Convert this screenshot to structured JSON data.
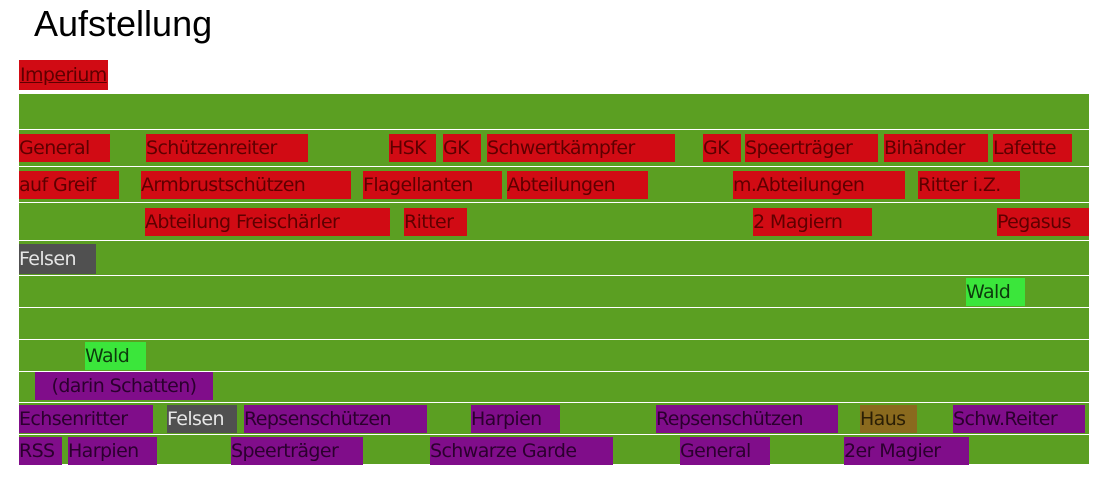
{
  "title": "Aufstellung",
  "colors": {
    "field": "#5b9f22",
    "grid": "#ffffff",
    "red_unit": "#d10b14",
    "red_text": "#5e0000",
    "purple_unit": "#800d8a",
    "purple_text": "#2b002e",
    "terrain_wald": "#3be63b",
    "terrain_felsen": "#505050",
    "terrain_haus": "#8a6a1e"
  },
  "faction_top": "Imperium",
  "rows": {
    "row1": [
      "General",
      "Schützenreiter",
      "HSK",
      "GK",
      "Schwertkämpfer",
      "GK",
      "Speerträger",
      "Bihänder",
      "Lafette"
    ],
    "row2": [
      "auf Greif",
      "Armbrustschützen",
      "Flagellanten",
      "Abteilungen",
      "m.Abteilungen",
      "Ritter i.Z."
    ],
    "row3": [
      "Abteilung Freischärler",
      "Ritter",
      "2 Magiern",
      "Pegasus"
    ],
    "row4": [
      "Felsen"
    ],
    "row5": [
      "Wald"
    ],
    "row7": [
      "Wald"
    ],
    "row8": [
      "(darin Schatten)"
    ],
    "row9": [
      "Echsenritter",
      "Felsen",
      "Repsenschützen",
      "Harpien",
      "Repsenschützen",
      "Haus",
      "Schw.Reiter"
    ],
    "row10": [
      "RSS",
      "Harpien",
      "Speerträger",
      "Schwarze Garde",
      "General",
      "2er Magier"
    ]
  }
}
